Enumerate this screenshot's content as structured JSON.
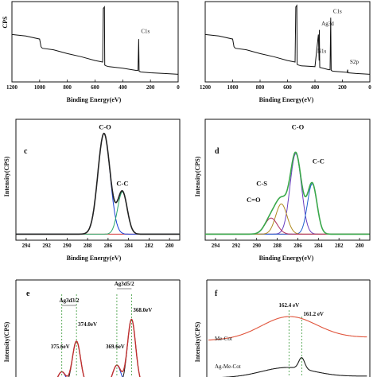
{
  "chart_data": [
    {
      "id": "a",
      "type": "line",
      "panel_label": "",
      "xlabel": "Binding Energy(eV)",
      "ylabel": "CPS",
      "xlim": [
        1200,
        0
      ],
      "xticks": [
        1200,
        1000,
        800,
        600,
        400,
        200,
        0
      ],
      "series": [
        {
          "x": [
            1200,
            1100,
            1000,
            990,
            980,
            900,
            800,
            700,
            600,
            545,
            540,
            532,
            530,
            520,
            500,
            400,
            300,
            290,
            285,
            282,
            270,
            200,
            100,
            0
          ],
          "y": [
            6.2,
            6.0,
            5.6,
            4.6,
            4.4,
            4.2,
            3.7,
            3.3,
            2.8,
            2.6,
            9.6,
            9.8,
            2.2,
            2.1,
            2.0,
            1.8,
            1.5,
            1.5,
            5.6,
            1.4,
            1.3,
            1.2,
            1.1,
            1.0
          ]
        }
      ],
      "annotations": [
        {
          "text": "C1s",
          "x": 285,
          "y": 6.4
        }
      ]
    },
    {
      "id": "b",
      "type": "line",
      "panel_label": "",
      "xlabel": "Binding Energy(eV)",
      "ylabel": "",
      "xlim": [
        1200,
        0
      ],
      "xticks": [
        1200,
        1000,
        800,
        600,
        400,
        200,
        0
      ],
      "series": [
        {
          "x": [
            1200,
            1100,
            1000,
            990,
            980,
            900,
            800,
            700,
            600,
            545,
            540,
            532,
            530,
            520,
            500,
            400,
            375,
            370,
            368,
            365,
            300,
            290,
            285,
            282,
            270,
            200,
            165,
            162,
            160,
            100,
            0
          ],
          "y": [
            6.2,
            6.0,
            5.6,
            4.6,
            4.4,
            4.2,
            3.7,
            3.3,
            2.8,
            2.6,
            9.8,
            10,
            2.3,
            2.2,
            2.1,
            2.0,
            6.2,
            2.8,
            6.8,
            1.9,
            1.6,
            1.6,
            8.4,
            1.5,
            1.4,
            1.3,
            1.25,
            1.6,
            1.2,
            1.1,
            1.0
          ]
        }
      ],
      "annotations": [
        {
          "text": "Ag3d",
          "x": 370,
          "y": 7.4
        },
        {
          "text": "C1s",
          "x": 285,
          "y": 9.0
        },
        {
          "text": "N1s",
          "x": 400,
          "y": 3.8
        },
        {
          "text": "S2p",
          "x": 162,
          "y": 2.4
        }
      ]
    },
    {
      "id": "c",
      "type": "line",
      "panel_label": "c",
      "xlabel": "Binding Energy(eV)",
      "ylabel": "Intensity(CPS)",
      "xlim": [
        295,
        279
      ],
      "xticks": [
        294,
        292,
        290,
        288,
        286,
        284,
        282,
        280
      ],
      "components": [
        {
          "name": "C-O",
          "center": 286.4,
          "fwhm": 1.4,
          "height": 100,
          "color": "#1a3fd6"
        },
        {
          "name": "C-C",
          "center": 284.6,
          "fwhm": 1.1,
          "height": 42,
          "color": "#2aa86a"
        }
      ],
      "envelope_color": "#222222",
      "baseline_color": "#d03030",
      "annotations": [
        {
          "text": "C-O",
          "x": 286.3,
          "y": 104
        },
        {
          "text": "C-C",
          "x": 284.6,
          "y": 48
        }
      ]
    },
    {
      "id": "d",
      "type": "line",
      "panel_label": "d",
      "xlabel": "Binding Energy(eV)",
      "ylabel": "Intensity(CPS)",
      "xlim": [
        295,
        279
      ],
      "xticks": [
        294,
        292,
        290,
        288,
        286,
        284,
        282,
        280
      ],
      "components": [
        {
          "name": "C-O",
          "center": 286.2,
          "fwhm": 1.3,
          "height": 80,
          "color": "#6a3fc0"
        },
        {
          "name": "C-C",
          "center": 284.6,
          "fwhm": 1.1,
          "height": 50,
          "color": "#2060d0"
        },
        {
          "name": "C-S",
          "center": 287.6,
          "fwhm": 1.3,
          "height": 30,
          "color": "#b08a20"
        },
        {
          "name": "C=O",
          "center": 288.6,
          "fwhm": 1.4,
          "height": 16,
          "color": "#b03060"
        }
      ],
      "envelope_color": "#3aa84a",
      "baseline_color": "#d03030",
      "annotations": [
        {
          "text": "C-O",
          "x": 286.0,
          "y": 104
        },
        {
          "text": "C-C",
          "x": 284.0,
          "y": 70
        },
        {
          "text": "C-S",
          "x": 289.5,
          "y": 48
        },
        {
          "text": "C=O",
          "x": 290.3,
          "y": 32
        }
      ]
    },
    {
      "id": "e",
      "type": "line",
      "panel_label": "e",
      "xlabel": "",
      "ylabel": "Intensity(CPS)",
      "components": [
        {
          "name": "Ag3d3/2 a",
          "center": 374.0,
          "height": 100,
          "color": "#1a1a1a"
        },
        {
          "name": "Ag3d3/2 b",
          "center": 375.6,
          "height": 30,
          "color": "#1a3fd6"
        },
        {
          "name": "Ag3d5/2 a",
          "center": 368.0,
          "height": 150,
          "color": "#1a1a1a"
        },
        {
          "name": "Ag3d5/2 b",
          "center": 369.6,
          "height": 45,
          "color": "#1a3fd6"
        }
      ],
      "annotations": [
        {
          "text": "Ag3d3/2"
        },
        {
          "text": "Ag3d5/2"
        },
        {
          "text": "374.0eV"
        },
        {
          "text": "375.6eV"
        },
        {
          "text": "368.0eV"
        },
        {
          "text": "369.6eV"
        }
      ]
    },
    {
      "id": "f",
      "type": "line",
      "panel_label": "f",
      "xlabel": "",
      "ylabel": "Intensity(CPS)",
      "series": [
        {
          "name": "Me-Cot",
          "color": "#e0533a"
        },
        {
          "name": "Ag-Me-Cot",
          "color": "#1a1a1a"
        }
      ],
      "annotations": [
        {
          "text": "162.4 eV"
        },
        {
          "text": "161.2 eV"
        }
      ]
    }
  ]
}
